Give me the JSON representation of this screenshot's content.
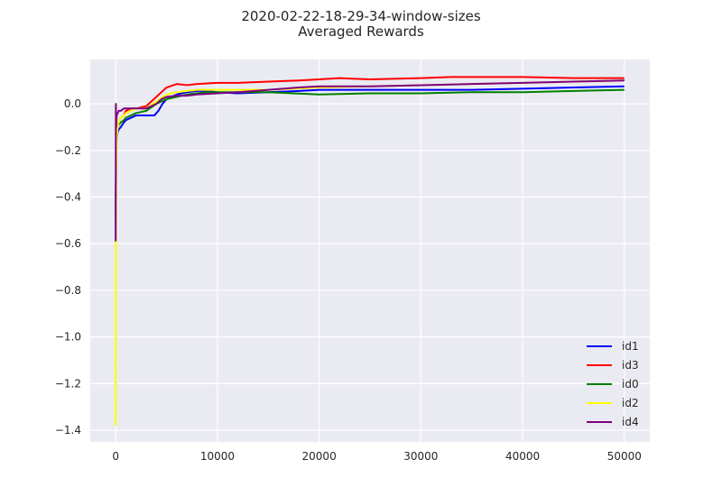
{
  "chart_data": {
    "type": "line",
    "title": "2020-02-22-18-29-34-window-sizes",
    "subtitle": "Averaged Rewards",
    "xlabel": "",
    "ylabel": "",
    "xlim": [
      -2500,
      52500
    ],
    "ylim": [
      -1.45,
      0.19
    ],
    "x_ticks": [
      0,
      10000,
      20000,
      30000,
      40000,
      50000
    ],
    "x_tick_labels": [
      "0",
      "10000",
      "20000",
      "30000",
      "40000",
      "50000"
    ],
    "y_ticks": [
      0.0,
      -0.2,
      -0.4,
      -0.6,
      -0.8,
      -1.0,
      -1.2,
      -1.4
    ],
    "y_tick_labels": [
      "0.0",
      "−0.2",
      "−0.4",
      "−0.6",
      "−0.8",
      "−1.0",
      "−1.2",
      "−1.4"
    ],
    "grid": true,
    "background_color": "#EAEAF2",
    "legend_position": "lower-right",
    "series": [
      {
        "name": "id1",
        "color": "#0000FF",
        "x": [
          0,
          50,
          100,
          200,
          300,
          500,
          800,
          1000,
          1500,
          2000,
          3000,
          3800,
          4200,
          4600,
          5000,
          6000,
          7000,
          8000,
          9000,
          10000,
          12000,
          15000,
          18000,
          20000,
          25000,
          30000,
          35000,
          40000,
          45000,
          50000
        ],
        "values": [
          -0.58,
          -0.2,
          -0.15,
          -0.12,
          -0.11,
          -0.1,
          -0.08,
          -0.07,
          -0.06,
          -0.05,
          -0.05,
          -0.05,
          -0.03,
          0.0,
          0.02,
          0.04,
          0.05,
          0.055,
          0.055,
          0.05,
          0.045,
          0.05,
          0.055,
          0.06,
          0.06,
          0.06,
          0.06,
          0.065,
          0.07,
          0.075
        ]
      },
      {
        "name": "id3",
        "color": "#FF0000",
        "x": [
          0,
          50,
          100,
          200,
          300,
          500,
          800,
          1000,
          1500,
          2000,
          3000,
          4000,
          4500,
          5000,
          6000,
          7000,
          8000,
          10000,
          12000,
          15000,
          18000,
          20000,
          22000,
          25000,
          30000,
          33000,
          35000,
          40000,
          45000,
          50000
        ],
        "values": [
          -0.45,
          -0.2,
          -0.12,
          -0.1,
          -0.08,
          -0.06,
          -0.05,
          -0.03,
          -0.02,
          -0.02,
          -0.01,
          0.03,
          0.05,
          0.07,
          0.085,
          0.08,
          0.085,
          0.09,
          0.09,
          0.095,
          0.1,
          0.105,
          0.11,
          0.105,
          0.11,
          0.115,
          0.115,
          0.115,
          0.11,
          0.11
        ]
      },
      {
        "name": "id0",
        "color": "#008000",
        "x": [
          0,
          50,
          100,
          200,
          300,
          500,
          800,
          1000,
          1500,
          2000,
          3000,
          4000,
          5000,
          6000,
          7000,
          8000,
          9000,
          10000,
          12000,
          15000,
          20000,
          25000,
          30000,
          35000,
          40000,
          45000,
          50000
        ],
        "values": [
          -0.5,
          -0.2,
          -0.12,
          -0.1,
          -0.09,
          -0.08,
          -0.07,
          -0.06,
          -0.05,
          -0.04,
          -0.03,
          0.0,
          0.02,
          0.03,
          0.04,
          0.045,
          0.05,
          0.05,
          0.05,
          0.05,
          0.04,
          0.045,
          0.045,
          0.05,
          0.05,
          0.055,
          0.06
        ]
      },
      {
        "name": "id2",
        "color": "#FFFF00",
        "x": [
          0,
          20,
          50,
          100,
          200,
          300,
          500,
          800,
          1000,
          1500,
          2000,
          3000,
          4000,
          5000,
          6000,
          7000,
          8000,
          10000,
          12000,
          15000,
          20000,
          25000,
          30000,
          35000,
          40000,
          45000,
          50000
        ],
        "values": [
          -1.38,
          -0.6,
          -0.3,
          -0.15,
          -0.1,
          -0.08,
          -0.06,
          -0.05,
          -0.04,
          -0.03,
          -0.02,
          -0.02,
          0.01,
          0.04,
          0.05,
          0.055,
          0.06,
          0.06,
          0.06,
          0.06,
          0.07,
          0.075,
          0.08,
          0.085,
          0.09,
          0.095,
          0.1
        ]
      },
      {
        "name": "id4",
        "color": "#800080",
        "x": [
          0,
          20,
          50,
          100,
          200,
          300,
          500,
          800,
          1000,
          1500,
          2000,
          3000,
          4000,
          4500,
          5000,
          6000,
          7000,
          8000,
          10000,
          12000,
          15000,
          18000,
          20000,
          25000,
          30000,
          35000,
          40000,
          45000,
          50000
        ],
        "values": [
          -0.59,
          0.0,
          -0.1,
          -0.05,
          -0.04,
          -0.03,
          -0.03,
          -0.02,
          -0.02,
          -0.02,
          -0.02,
          -0.02,
          0.0,
          0.02,
          0.03,
          0.035,
          0.035,
          0.04,
          0.045,
          0.05,
          0.06,
          0.07,
          0.075,
          0.075,
          0.08,
          0.085,
          0.09,
          0.095,
          0.1
        ]
      }
    ]
  }
}
